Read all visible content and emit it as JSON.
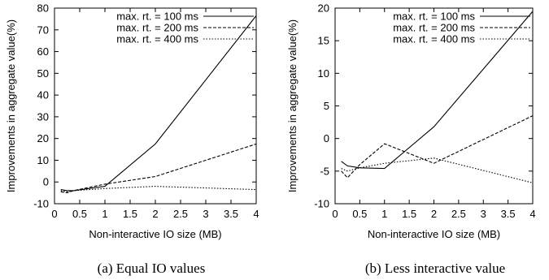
{
  "chart_data": [
    {
      "type": "line",
      "caption": "(a) Equal IO values",
      "xlabel": "Non-interactive IO size (MB)",
      "ylabel": "Improvements in aggregate value(%)",
      "xlim": [
        0,
        4
      ],
      "ylim": [
        -10,
        80
      ],
      "xticks": [
        "0",
        "0.5",
        "1",
        "1.5",
        "2",
        "2.5",
        "3",
        "3.5",
        "4"
      ],
      "yticks": [
        "-10",
        "0",
        "10",
        "20",
        "30",
        "40",
        "50",
        "60",
        "70",
        "80"
      ],
      "legend_position": "top-left",
      "series": [
        {
          "name": "max. rt. = 100 ms",
          "dash": "solid",
          "x": [
            0.125,
            0.25,
            0.375,
            1,
            2,
            4
          ],
          "y": [
            -3.5,
            -4,
            -4,
            -2,
            17.5,
            76.5
          ]
        },
        {
          "name": "max. rt. = 200 ms",
          "dash": "dashed",
          "x": [
            0.125,
            0.25,
            0.375,
            1,
            2,
            4
          ],
          "y": [
            -4.5,
            -5,
            -4,
            -1,
            2.5,
            17.5
          ]
        },
        {
          "name": "max. rt. = 400 ms",
          "dash": "dotted",
          "x": [
            0.125,
            0.25,
            0.375,
            1,
            2,
            4
          ],
          "y": [
            -4,
            -4.5,
            -4,
            -3,
            -2,
            -3.5
          ]
        }
      ]
    },
    {
      "type": "line",
      "caption": "(b) Less interactive value",
      "xlabel": "Non-interactive IO size (MB)",
      "ylabel": "Improvements in aggregate value(%)",
      "xlim": [
        0,
        4
      ],
      "ylim": [
        -10,
        20
      ],
      "xticks": [
        "0",
        "0.5",
        "1",
        "1.5",
        "2",
        "2.5",
        "3",
        "3.5",
        "4"
      ],
      "yticks": [
        "-10",
        "-5",
        "0",
        "5",
        "10",
        "15",
        "20"
      ],
      "legend_position": "top-right",
      "series": [
        {
          "name": "max. rt. = 100 ms",
          "dash": "solid",
          "x": [
            0.125,
            0.25,
            0.5,
            1,
            2,
            4
          ],
          "y": [
            -3.5,
            -4.2,
            -4.5,
            -4.6,
            1.8,
            19.5
          ]
        },
        {
          "name": "max. rt. = 200 ms",
          "dash": "dashed",
          "x": [
            0.125,
            0.25,
            0.5,
            1,
            2,
            4
          ],
          "y": [
            -5,
            -6,
            -4,
            -0.8,
            -3.8,
            3.5
          ]
        },
        {
          "name": "max. rt. = 400 ms",
          "dash": "dotted",
          "x": [
            0.125,
            0.25,
            0.5,
            1,
            2,
            4
          ],
          "y": [
            -4.6,
            -5,
            -4.5,
            -3.8,
            -3,
            -6.8
          ]
        }
      ]
    }
  ]
}
